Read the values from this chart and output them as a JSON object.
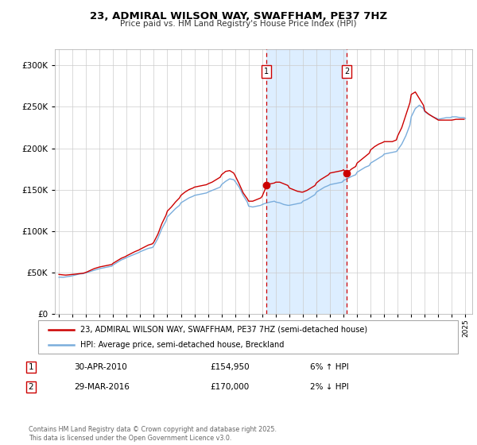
{
  "title": "23, ADMIRAL WILSON WAY, SWAFFHAM, PE37 7HZ",
  "subtitle": "Price paid vs. HM Land Registry's House Price Index (HPI)",
  "legend_line1": "23, ADMIRAL WILSON WAY, SWAFFHAM, PE37 7HZ (semi-detached house)",
  "legend_line2": "HPI: Average price, semi-detached house, Breckland",
  "footnote": "Contains HM Land Registry data © Crown copyright and database right 2025.\nThis data is licensed under the Open Government Licence v3.0.",
  "marker1_label": "1",
  "marker1_date": "30-APR-2010",
  "marker1_price": "£154,950",
  "marker1_hpi": "6% ↑ HPI",
  "marker1_year": 2010.33,
  "marker2_label": "2",
  "marker2_date": "29-MAR-2016",
  "marker2_price": "£170,000",
  "marker2_hpi": "2% ↓ HPI",
  "marker2_year": 2016.25,
  "red_color": "#cc0000",
  "blue_color": "#7aaddc",
  "shaded_color": "#ddeeff",
  "grid_color": "#cccccc",
  "background_color": "#ffffff",
  "ylim": [
    0,
    320000
  ],
  "xlim_start": 1994.7,
  "xlim_end": 2025.5,
  "hpi_series": {
    "years": [
      1995.0,
      1995.1,
      1995.2,
      1995.3,
      1995.4,
      1995.5,
      1995.6,
      1995.7,
      1995.8,
      1995.9,
      1996.0,
      1996.1,
      1996.2,
      1996.3,
      1996.5,
      1996.8,
      1997.0,
      1997.2,
      1997.4,
      1997.6,
      1997.8,
      1998.0,
      1998.3,
      1998.6,
      1998.9,
      1999.0,
      1999.3,
      1999.6,
      1999.9,
      2000.0,
      2000.3,
      2000.6,
      2000.9,
      2001.0,
      2001.3,
      2001.6,
      2001.9,
      2002.0,
      2002.3,
      2002.6,
      2002.9,
      2003.0,
      2003.3,
      2003.6,
      2003.9,
      2004.0,
      2004.3,
      2004.6,
      2004.9,
      2005.0,
      2005.3,
      2005.6,
      2005.9,
      2006.0,
      2006.3,
      2006.6,
      2006.9,
      2007.0,
      2007.3,
      2007.6,
      2007.9,
      2008.0,
      2008.3,
      2008.6,
      2008.9,
      2009.0,
      2009.3,
      2009.6,
      2009.9,
      2010.0,
      2010.33,
      2010.6,
      2010.9,
      2011.0,
      2011.3,
      2011.6,
      2011.9,
      2012.0,
      2012.3,
      2012.6,
      2012.9,
      2013.0,
      2013.3,
      2013.6,
      2013.9,
      2014.0,
      2014.3,
      2014.6,
      2014.9,
      2015.0,
      2015.3,
      2015.6,
      2015.9,
      2016.0,
      2016.25,
      2016.6,
      2016.9,
      2017.0,
      2017.3,
      2017.6,
      2017.9,
      2018.0,
      2018.3,
      2018.6,
      2018.9,
      2019.0,
      2019.3,
      2019.6,
      2019.9,
      2020.0,
      2020.3,
      2020.6,
      2020.9,
      2021.0,
      2021.3,
      2021.6,
      2021.9,
      2022.0,
      2022.3,
      2022.6,
      2022.9,
      2023.0,
      2023.3,
      2023.6,
      2023.9,
      2024.0,
      2024.3,
      2024.6,
      2024.9,
      2025.0
    ],
    "values": [
      44000,
      44200,
      44100,
      44000,
      44200,
      44500,
      44800,
      45000,
      45200,
      45500,
      46000,
      46300,
      46800,
      47200,
      48000,
      48500,
      49500,
      50500,
      51500,
      52500,
      53500,
      54500,
      55500,
      56500,
      57500,
      59000,
      62000,
      65000,
      67000,
      68000,
      70000,
      72000,
      74000,
      75000,
      77000,
      79000,
      80000,
      82000,
      91000,
      103000,
      112000,
      117000,
      122000,
      127000,
      131000,
      134000,
      137000,
      140000,
      142000,
      143000,
      144000,
      145000,
      146000,
      147000,
      149000,
      151000,
      153000,
      156000,
      160000,
      163000,
      162000,
      160000,
      153000,
      143000,
      135000,
      130000,
      129000,
      130000,
      131000,
      132000,
      134000,
      135000,
      136000,
      135000,
      134000,
      132000,
      131000,
      131000,
      132000,
      133000,
      134000,
      136000,
      138000,
      141000,
      144000,
      147000,
      150000,
      153000,
      155000,
      156000,
      157000,
      158000,
      159000,
      161000,
      163000,
      166000,
      168000,
      171000,
      174000,
      177000,
      179000,
      182000,
      185000,
      188000,
      191000,
      193000,
      194000,
      195000,
      196000,
      198000,
      205000,
      215000,
      228000,
      238000,
      248000,
      252000,
      248000,
      244000,
      241000,
      238000,
      236000,
      235000,
      236000,
      237000,
      237000,
      238000,
      238000,
      237000,
      237000,
      236000
    ]
  },
  "price_series": {
    "years": [
      1995.0,
      1995.1,
      1995.2,
      1995.3,
      1995.4,
      1995.5,
      1995.6,
      1995.7,
      1995.8,
      1995.9,
      1996.0,
      1996.1,
      1996.2,
      1996.3,
      1996.5,
      1996.8,
      1997.0,
      1997.2,
      1997.4,
      1997.6,
      1997.8,
      1998.0,
      1998.3,
      1998.6,
      1998.9,
      1999.0,
      1999.3,
      1999.6,
      1999.9,
      2000.0,
      2000.3,
      2000.6,
      2000.9,
      2001.0,
      2001.3,
      2001.6,
      2001.9,
      2002.0,
      2002.3,
      2002.6,
      2002.9,
      2003.0,
      2003.3,
      2003.6,
      2003.9,
      2004.0,
      2004.3,
      2004.6,
      2004.9,
      2005.0,
      2005.3,
      2005.6,
      2005.9,
      2006.0,
      2006.3,
      2006.6,
      2006.9,
      2007.0,
      2007.3,
      2007.6,
      2007.9,
      2008.0,
      2008.3,
      2008.6,
      2008.9,
      2009.0,
      2009.3,
      2009.6,
      2009.9,
      2010.0,
      2010.33,
      2010.6,
      2010.9,
      2011.0,
      2011.3,
      2011.6,
      2011.9,
      2012.0,
      2012.3,
      2012.6,
      2012.9,
      2013.0,
      2013.3,
      2013.6,
      2013.9,
      2014.0,
      2014.3,
      2014.6,
      2014.9,
      2015.0,
      2015.3,
      2015.6,
      2015.9,
      2016.0,
      2016.25,
      2016.6,
      2016.9,
      2017.0,
      2017.3,
      2017.6,
      2017.9,
      2018.0,
      2018.3,
      2018.6,
      2018.9,
      2019.0,
      2019.3,
      2019.6,
      2019.9,
      2020.0,
      2020.3,
      2020.6,
      2020.9,
      2021.0,
      2021.3,
      2021.6,
      2021.9,
      2022.0,
      2022.3,
      2022.6,
      2022.9,
      2023.0,
      2023.3,
      2023.6,
      2023.9,
      2024.0,
      2024.3,
      2024.6,
      2024.9
    ],
    "values": [
      47500,
      47300,
      47200,
      47000,
      46800,
      46700,
      46800,
      47000,
      47200,
      47400,
      47500,
      47600,
      47800,
      48000,
      48500,
      49000,
      50000,
      51500,
      53000,
      54500,
      55500,
      56500,
      57500,
      58500,
      59500,
      61000,
      64000,
      67000,
      69000,
      70000,
      72500,
      75000,
      77000,
      78000,
      80500,
      83000,
      84500,
      86500,
      96000,
      109000,
      119000,
      124000,
      129000,
      135000,
      140000,
      143000,
      147000,
      150000,
      152000,
      153000,
      154000,
      155000,
      156000,
      157000,
      159000,
      162000,
      165000,
      168000,
      172000,
      173000,
      170000,
      167000,
      157000,
      146000,
      139000,
      136000,
      136000,
      138000,
      140000,
      142000,
      154950,
      157000,
      158000,
      159000,
      159000,
      157000,
      155000,
      152000,
      150000,
      148000,
      147000,
      147000,
      149000,
      152000,
      155000,
      158000,
      162000,
      165000,
      168000,
      170000,
      171000,
      172000,
      173000,
      174000,
      170000,
      175000,
      178000,
      182000,
      186000,
      190000,
      194000,
      198000,
      202000,
      205000,
      207000,
      208000,
      208000,
      208000,
      210000,
      215000,
      225000,
      240000,
      255000,
      265000,
      268000,
      260000,
      252000,
      245000,
      241000,
      238000,
      235000,
      234000,
      234000,
      234000,
      234000,
      234000,
      235000,
      235000,
      235000
    ]
  },
  "marker1_value": 154950,
  "marker2_value": 170000
}
